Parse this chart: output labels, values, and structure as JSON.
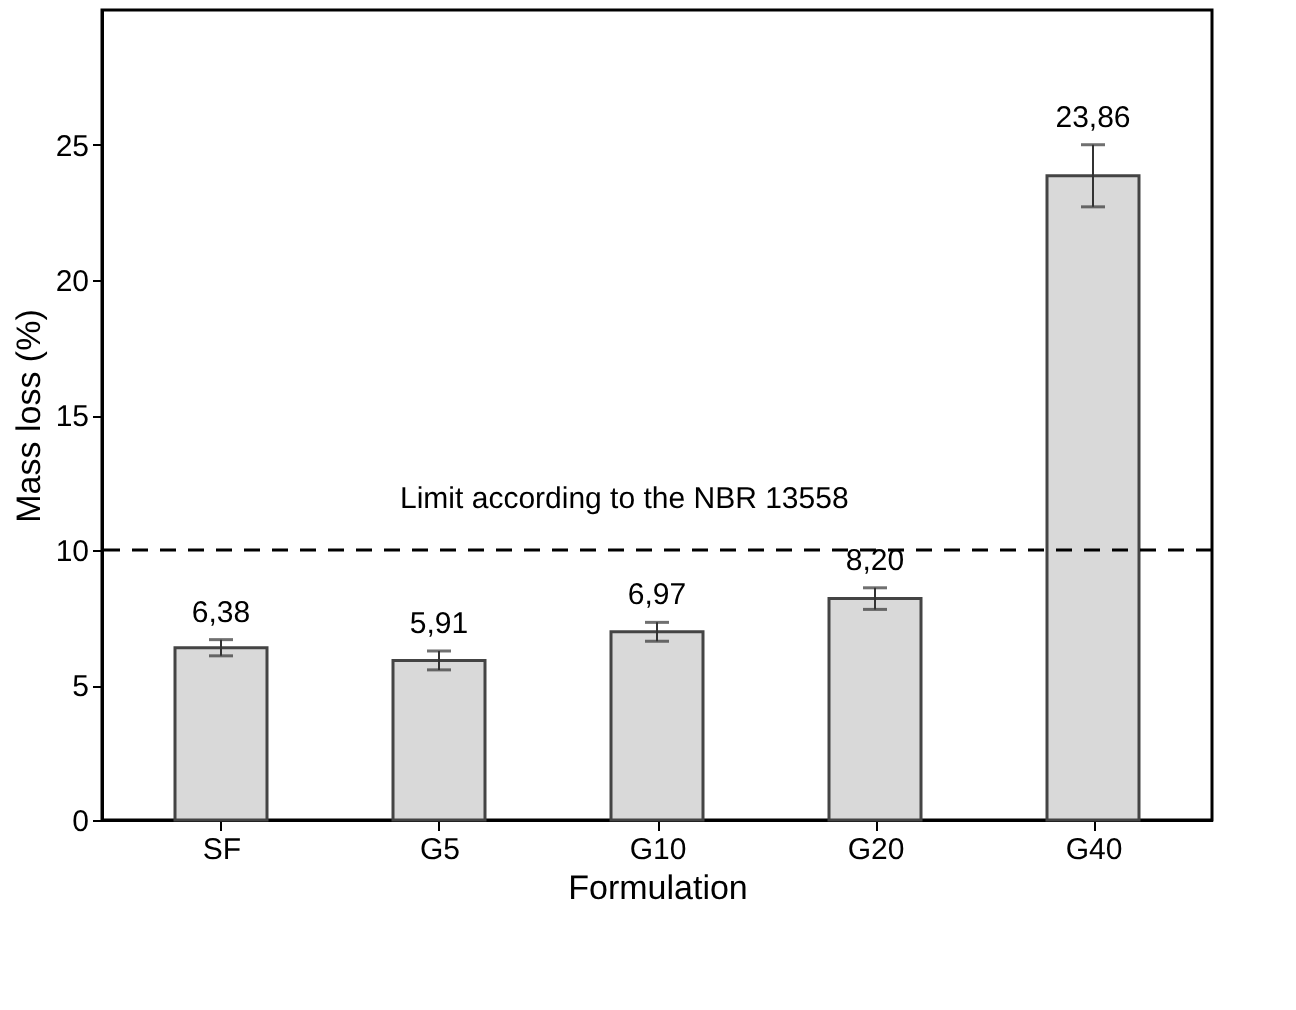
{
  "chart_data": {
    "type": "bar",
    "xlabel": "Formulation",
    "ylabel": "Mass loss (%)",
    "categories": [
      "SF",
      "G5",
      "G10",
      "G20",
      "G40"
    ],
    "values": [
      6.38,
      5.91,
      6.97,
      8.2,
      23.86
    ],
    "errors": [
      0.3,
      0.35,
      0.35,
      0.4,
      1.15
    ],
    "color": "#d9d9d9",
    "value_labels": [
      "6,38",
      "5,91",
      "6,97",
      "8,20",
      "23,86"
    ],
    "ylim": [
      0,
      30
    ],
    "yticks": [
      0,
      5,
      10,
      15,
      20,
      25
    ],
    "ref_lines": [
      {
        "axis": "y",
        "value": 10,
        "label": "Limit according to the NBR 13558",
        "color": "#000000",
        "line_style": "dashed"
      }
    ],
    "grid": false
  }
}
